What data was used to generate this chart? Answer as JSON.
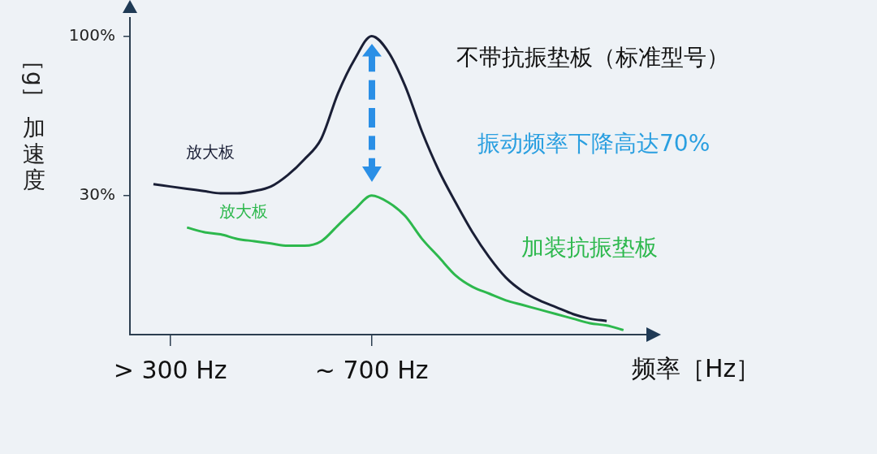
{
  "chart_data": {
    "type": "line",
    "ylabel": "［g］加速度",
    "xlabel": "频率［Hz］",
    "categories": [
      null,
      null,
      "> 300 Hz",
      null,
      null,
      null,
      null,
      null,
      null,
      null,
      null,
      null,
      null,
      null,
      "~ 700 Hz",
      null,
      null,
      null,
      null,
      null,
      null,
      null,
      null,
      null,
      null,
      null,
      null,
      null,
      null,
      null
    ],
    "ylim": [
      -31,
      108
    ],
    "yticks": [
      {
        "value": 30,
        "label": "30%"
      },
      {
        "value": 100,
        "label": "100%"
      }
    ],
    "marker": "none",
    "legend": false,
    "series": [
      {
        "name": "放大板",
        "color": "#1a1f36",
        "values": [
          null,
          35,
          34,
          33,
          32,
          31,
          31,
          32,
          34,
          39,
          46,
          55,
          75,
          90,
          100,
          93,
          78,
          58,
          41,
          27,
          14,
          3,
          -6,
          -12,
          -16,
          -19,
          -22,
          -24,
          -25,
          null
        ]
      },
      {
        "name": "放大板",
        "color": "#2db84d",
        "values": [
          null,
          null,
          null,
          16,
          14,
          13,
          11,
          10,
          9,
          8,
          8,
          10,
          17,
          24,
          30,
          27,
          21,
          11,
          3,
          -5,
          -10,
          -13,
          -16,
          -18,
          -20,
          -22,
          -24,
          -26,
          -27,
          -29
        ]
      }
    ],
    "annotations": [
      "不带抗振垫板（标准型号）",
      "振动频率下降高达70%",
      "加装抗振垫板"
    ]
  }
}
